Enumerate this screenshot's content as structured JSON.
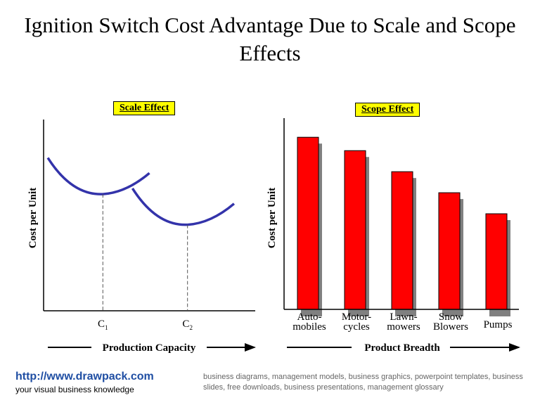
{
  "title": "Ignition Switch Cost Advantage Due to Scale and Scope Effects",
  "chart_data": [
    {
      "type": "line",
      "title": "Scale Effect",
      "xlabel": "Production Capacity",
      "ylabel": "Cost per Unit",
      "tick_labels": [
        {
          "base": "C",
          "sub": "1"
        },
        {
          "base": "C",
          "sub": "2"
        }
      ],
      "series": [
        {
          "points": [
            [
              0.02,
              0.8
            ],
            [
              0.28,
              0.61
            ],
            [
              0.5,
              0.72
            ]
          ],
          "min_at": "C1"
        },
        {
          "points": [
            [
              0.42,
              0.64
            ],
            [
              0.68,
              0.45
            ],
            [
              0.9,
              0.56
            ]
          ],
          "min_at": "C2"
        }
      ],
      "color": "#3333aa",
      "grid": false
    },
    {
      "type": "bar",
      "title": "Scope Effect",
      "xlabel": "Product Breadth",
      "ylabel": "Cost per Unit",
      "categories": [
        [
          "Auto-",
          "mobiles"
        ],
        [
          "Motor-",
          "cycles"
        ],
        [
          "Lawn-",
          "mowers"
        ],
        [
          "Snow",
          "Blowers"
        ],
        [
          "Pumps"
        ]
      ],
      "values": [
        0.9,
        0.83,
        0.72,
        0.61,
        0.5
      ],
      "ylim": [
        0,
        1
      ],
      "bar_color": "#ff0000",
      "shadow_color": "#808080",
      "grid": false
    }
  ],
  "footer": {
    "link": "http://www.drawpack.com",
    "tagline": "your visual business knowledge",
    "keywords": "business diagrams, management models, business graphics, powerpoint templates, business slides, free downloads, business presentations, management glossary"
  }
}
